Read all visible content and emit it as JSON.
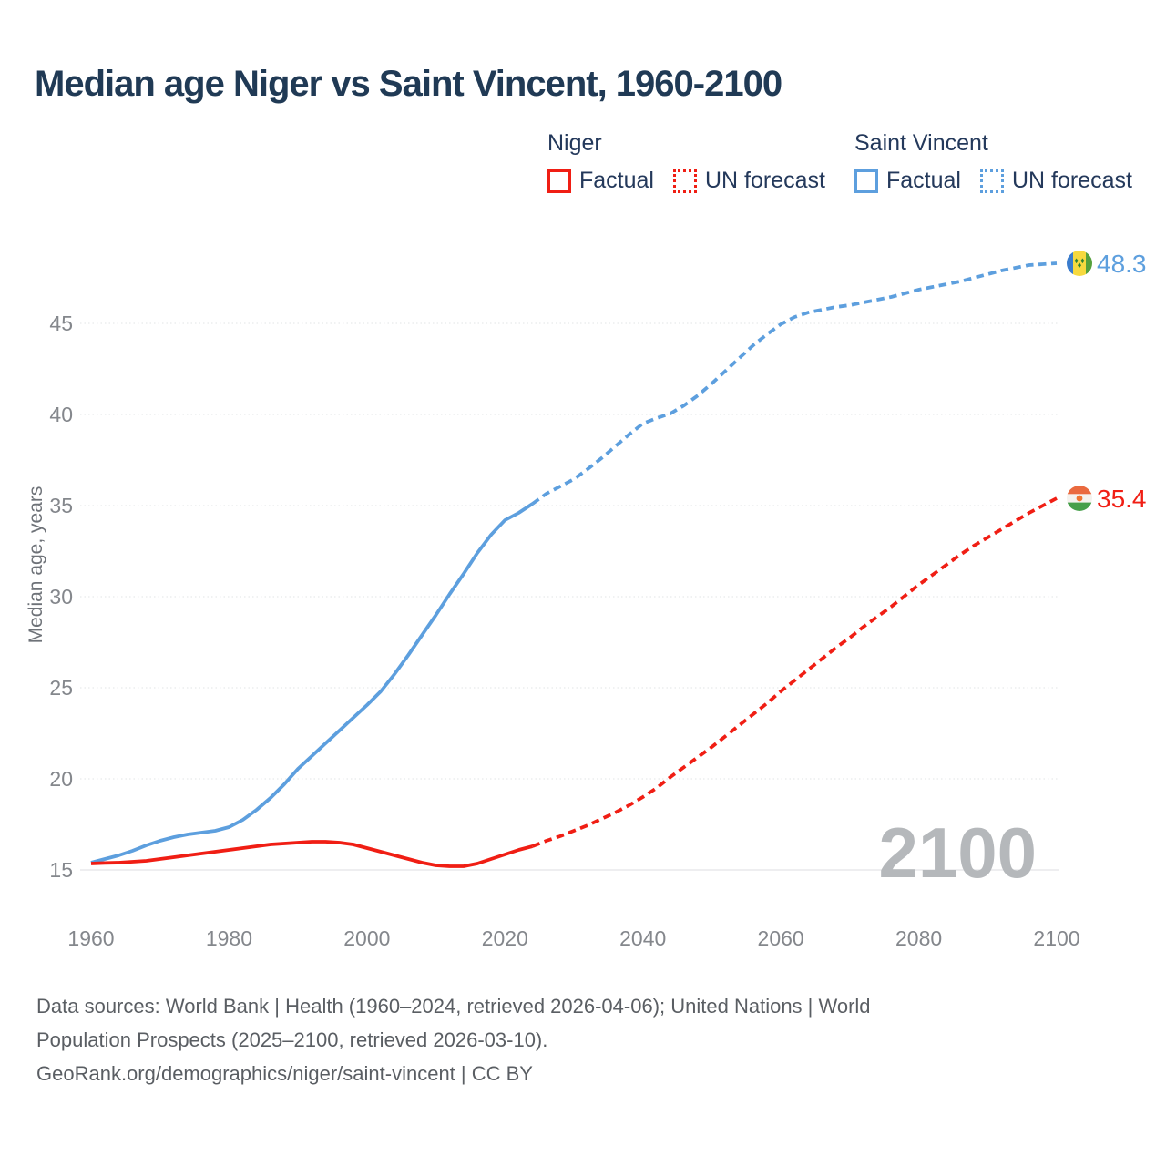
{
  "title": "Median age Niger vs Saint Vincent, 1960-2100",
  "legend": {
    "niger": {
      "label": "Niger",
      "factual": "Factual",
      "forecast": "UN forecast"
    },
    "saint_vincent": {
      "label": "Saint Vincent",
      "factual": "Factual",
      "forecast": "UN forecast"
    }
  },
  "watermark": "2100",
  "colors": {
    "niger_line": "#f01e14",
    "saint_vincent_line": "#5d9fde",
    "title_text": "#203a55",
    "legend_text": "#24395b",
    "axis_text": "#84878c",
    "axis_title_text": "#6e7278",
    "grid": "#e8e9eb",
    "watermark_text": "#b5b8bb",
    "footer_text": "#5a5e63"
  },
  "chart_data": {
    "type": "line",
    "title": "Median age Niger vs Saint Vincent, 1960-2100",
    "xlabel": "",
    "ylabel": "Median age, years",
    "x_ticks": [
      1960,
      1980,
      2000,
      2020,
      2040,
      2060,
      2080,
      2100
    ],
    "y_ticks": [
      15,
      20,
      25,
      30,
      35,
      40,
      45
    ],
    "xlim": [
      1960,
      2100
    ],
    "ylim": [
      13.5,
      50
    ],
    "grid": "on",
    "legend_position": "top",
    "series": [
      {
        "name": "Saint Vincent Factual",
        "style": "solid",
        "color": "#5d9fde",
        "points": [
          [
            1960,
            15.4
          ],
          [
            1962,
            15.6
          ],
          [
            1964,
            15.8
          ],
          [
            1966,
            16.05
          ],
          [
            1968,
            16.35
          ],
          [
            1970,
            16.6
          ],
          [
            1972,
            16.8
          ],
          [
            1974,
            16.95
          ],
          [
            1976,
            17.05
          ],
          [
            1978,
            17.15
          ],
          [
            1980,
            17.35
          ],
          [
            1982,
            17.75
          ],
          [
            1984,
            18.3
          ],
          [
            1986,
            18.95
          ],
          [
            1988,
            19.7
          ],
          [
            1990,
            20.55
          ],
          [
            1992,
            21.25
          ],
          [
            1994,
            21.95
          ],
          [
            1996,
            22.65
          ],
          [
            1998,
            23.35
          ],
          [
            2000,
            24.05
          ],
          [
            2002,
            24.8
          ],
          [
            2004,
            25.75
          ],
          [
            2006,
            26.8
          ],
          [
            2008,
            27.9
          ],
          [
            2010,
            29.0
          ],
          [
            2012,
            30.15
          ],
          [
            2014,
            31.25
          ],
          [
            2016,
            32.4
          ],
          [
            2018,
            33.4
          ],
          [
            2020,
            34.2
          ],
          [
            2022,
            34.6
          ],
          [
            2024,
            35.1
          ]
        ]
      },
      {
        "name": "Saint Vincent UN forecast",
        "style": "dashed",
        "color": "#5d9fde",
        "points": [
          [
            2024,
            35.1
          ],
          [
            2026,
            35.65
          ],
          [
            2028,
            36.05
          ],
          [
            2030,
            36.45
          ],
          [
            2032,
            37.0
          ],
          [
            2034,
            37.6
          ],
          [
            2036,
            38.25
          ],
          [
            2038,
            38.9
          ],
          [
            2040,
            39.5
          ],
          [
            2042,
            39.8
          ],
          [
            2044,
            40.05
          ],
          [
            2046,
            40.5
          ],
          [
            2048,
            41.05
          ],
          [
            2050,
            41.7
          ],
          [
            2052,
            42.4
          ],
          [
            2054,
            43.1
          ],
          [
            2056,
            43.8
          ],
          [
            2058,
            44.4
          ],
          [
            2060,
            44.95
          ],
          [
            2062,
            45.35
          ],
          [
            2064,
            45.6
          ],
          [
            2066,
            45.75
          ],
          [
            2068,
            45.9
          ],
          [
            2070,
            46.0
          ],
          [
            2072,
            46.15
          ],
          [
            2074,
            46.3
          ],
          [
            2076,
            46.45
          ],
          [
            2078,
            46.65
          ],
          [
            2080,
            46.85
          ],
          [
            2082,
            47.0
          ],
          [
            2084,
            47.15
          ],
          [
            2086,
            47.3
          ],
          [
            2088,
            47.5
          ],
          [
            2090,
            47.7
          ],
          [
            2092,
            47.9
          ],
          [
            2094,
            48.05
          ],
          [
            2096,
            48.2
          ],
          [
            2098,
            48.25
          ],
          [
            2100,
            48.3
          ]
        ]
      },
      {
        "name": "Niger Factual",
        "style": "solid",
        "color": "#f01e14",
        "points": [
          [
            1960,
            15.35
          ],
          [
            1962,
            15.38
          ],
          [
            1964,
            15.4
          ],
          [
            1966,
            15.45
          ],
          [
            1968,
            15.5
          ],
          [
            1970,
            15.6
          ],
          [
            1972,
            15.7
          ],
          [
            1974,
            15.8
          ],
          [
            1976,
            15.9
          ],
          [
            1978,
            16.0
          ],
          [
            1980,
            16.1
          ],
          [
            1982,
            16.2
          ],
          [
            1984,
            16.3
          ],
          [
            1986,
            16.4
          ],
          [
            1988,
            16.45
          ],
          [
            1990,
            16.5
          ],
          [
            1992,
            16.55
          ],
          [
            1994,
            16.55
          ],
          [
            1996,
            16.5
          ],
          [
            1998,
            16.4
          ],
          [
            2000,
            16.2
          ],
          [
            2002,
            16.0
          ],
          [
            2004,
            15.8
          ],
          [
            2006,
            15.6
          ],
          [
            2008,
            15.4
          ],
          [
            2010,
            15.25
          ],
          [
            2012,
            15.2
          ],
          [
            2014,
            15.2
          ],
          [
            2016,
            15.35
          ],
          [
            2018,
            15.6
          ],
          [
            2020,
            15.85
          ],
          [
            2022,
            16.1
          ],
          [
            2024,
            16.3
          ]
        ]
      },
      {
        "name": "Niger UN forecast",
        "style": "dashed",
        "color": "#f01e14",
        "points": [
          [
            2024,
            16.3
          ],
          [
            2026,
            16.6
          ],
          [
            2028,
            16.85
          ],
          [
            2030,
            17.15
          ],
          [
            2032,
            17.45
          ],
          [
            2034,
            17.8
          ],
          [
            2036,
            18.15
          ],
          [
            2038,
            18.55
          ],
          [
            2040,
            19.0
          ],
          [
            2042,
            19.5
          ],
          [
            2044,
            20.1
          ],
          [
            2046,
            20.65
          ],
          [
            2048,
            21.2
          ],
          [
            2050,
            21.75
          ],
          [
            2052,
            22.35
          ],
          [
            2054,
            22.95
          ],
          [
            2056,
            23.55
          ],
          [
            2058,
            24.15
          ],
          [
            2060,
            24.8
          ],
          [
            2062,
            25.4
          ],
          [
            2064,
            26.0
          ],
          [
            2066,
            26.6
          ],
          [
            2068,
            27.2
          ],
          [
            2070,
            27.75
          ],
          [
            2072,
            28.35
          ],
          [
            2074,
            28.9
          ],
          [
            2076,
            29.45
          ],
          [
            2078,
            30.05
          ],
          [
            2080,
            30.65
          ],
          [
            2082,
            31.2
          ],
          [
            2084,
            31.75
          ],
          [
            2086,
            32.3
          ],
          [
            2088,
            32.8
          ],
          [
            2090,
            33.25
          ],
          [
            2092,
            33.7
          ],
          [
            2094,
            34.15
          ],
          [
            2096,
            34.6
          ],
          [
            2098,
            35.0
          ],
          [
            2100,
            35.4
          ]
        ]
      }
    ],
    "end_labels": [
      {
        "series": "Saint Vincent",
        "value": "48.3",
        "flag": "saint-vincent"
      },
      {
        "series": "Niger",
        "value": "35.4",
        "flag": "niger"
      }
    ]
  },
  "footer": {
    "line1": "Data sources: World Bank | Health (1960–2024, retrieved 2026-04-06); United Nations | World",
    "line2": "Population Prospects (2025–2100, retrieved 2026-03-10).",
    "line3": "GeoRank.org/demographics/niger/saint-vincent | CC BY"
  }
}
